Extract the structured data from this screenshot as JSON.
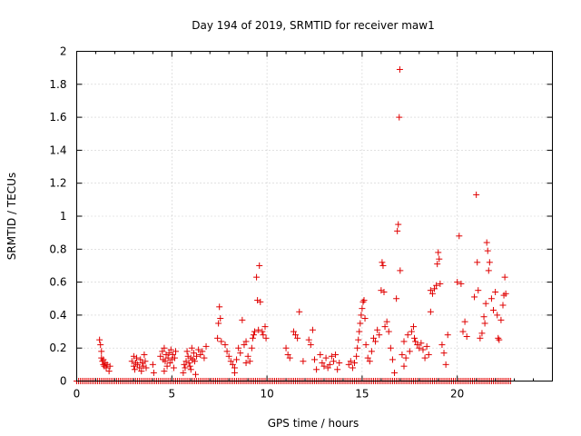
{
  "chart_data": {
    "type": "scatter",
    "title": "Day 194 of 2019, SRMTID for receiver maw1",
    "xlabel": "GPS time / hours",
    "ylabel": "SRMTID / TECUs",
    "xlim": [
      0,
      25
    ],
    "ylim": [
      0,
      2
    ],
    "xticks": [
      0,
      5,
      10,
      15,
      20
    ],
    "xtick_labels": [
      "0",
      "5",
      "10",
      "15",
      "20"
    ],
    "yticks": [
      0,
      0.2,
      0.4,
      0.6,
      0.8,
      1,
      1.2,
      1.4,
      1.6,
      1.8,
      2
    ],
    "ytick_labels": [
      "0",
      "0.2",
      "0.4",
      "0.6",
      "0.8",
      "1",
      "1.2",
      "1.4",
      "1.6",
      "1.8",
      "2"
    ],
    "grid": true,
    "marker": "+",
    "color": "#e00000",
    "series": [
      {
        "name": "SRMTID",
        "points": [
          [
            1.2,
            0.25
          ],
          [
            1.25,
            0.22
          ],
          [
            1.3,
            0.18
          ],
          [
            1.3,
            0.14
          ],
          [
            1.35,
            0.12
          ],
          [
            1.4,
            0.1
          ],
          [
            1.45,
            0.09
          ],
          [
            1.5,
            0.11
          ],
          [
            1.55,
            0.08
          ],
          [
            1.6,
            0.1
          ],
          [
            1.7,
            0.06
          ],
          [
            1.75,
            0.09
          ],
          [
            1.4,
            0.13
          ],
          [
            2.9,
            0.12
          ],
          [
            3.0,
            0.09
          ],
          [
            3.05,
            0.07
          ],
          [
            3.1,
            0.11
          ],
          [
            3.15,
            0.14
          ],
          [
            3.2,
            0.1
          ],
          [
            3.3,
            0.08
          ],
          [
            3.35,
            0.13
          ],
          [
            3.4,
            0.06
          ],
          [
            3.45,
            0.11
          ],
          [
            3.5,
            0.09
          ],
          [
            3.55,
            0.16
          ],
          [
            3.6,
            0.12
          ],
          [
            3.65,
            0.08
          ],
          [
            3.0,
            0.15
          ],
          [
            4.0,
            0.1
          ],
          [
            4.05,
            0.05
          ],
          [
            4.4,
            0.15
          ],
          [
            4.5,
            0.18
          ],
          [
            4.55,
            0.13
          ],
          [
            4.6,
            0.2
          ],
          [
            4.65,
            0.12
          ],
          [
            4.7,
            0.16
          ],
          [
            4.75,
            0.09
          ],
          [
            4.8,
            0.14
          ],
          [
            4.85,
            0.17
          ],
          [
            4.9,
            0.11
          ],
          [
            4.95,
            0.19
          ],
          [
            5.0,
            0.13
          ],
          [
            5.05,
            0.16
          ],
          [
            5.1,
            0.08
          ],
          [
            5.15,
            0.14
          ],
          [
            5.2,
            0.18
          ],
          [
            4.6,
            0.06
          ],
          [
            5.6,
            0.05
          ],
          [
            5.65,
            0.1
          ],
          [
            5.7,
            0.08
          ],
          [
            5.75,
            0.12
          ],
          [
            5.8,
            0.18
          ],
          [
            5.85,
            0.15
          ],
          [
            5.9,
            0.11
          ],
          [
            5.95,
            0.09
          ],
          [
            6.0,
            0.14
          ],
          [
            6.05,
            0.2
          ],
          [
            6.1,
            0.13
          ],
          [
            6.15,
            0.17
          ],
          [
            6.2,
            0.12
          ],
          [
            6.3,
            0.15
          ],
          [
            6.4,
            0.19
          ],
          [
            6.5,
            0.16
          ],
          [
            6.6,
            0.18
          ],
          [
            6.7,
            0.14
          ],
          [
            6.8,
            0.21
          ],
          [
            6.0,
            0.07
          ],
          [
            6.25,
            0.04
          ],
          [
            7.4,
            0.26
          ],
          [
            7.45,
            0.35
          ],
          [
            7.5,
            0.45
          ],
          [
            7.55,
            0.38
          ],
          [
            7.6,
            0.24
          ],
          [
            7.8,
            0.22
          ],
          [
            7.9,
            0.18
          ],
          [
            8.0,
            0.15
          ],
          [
            8.1,
            0.12
          ],
          [
            8.2,
            0.1
          ],
          [
            8.3,
            0.08
          ],
          [
            8.4,
            0.13
          ],
          [
            8.5,
            0.2
          ],
          [
            8.6,
            0.17
          ],
          [
            8.7,
            0.37
          ],
          [
            8.8,
            0.22
          ],
          [
            8.9,
            0.24
          ],
          [
            9.0,
            0.15
          ],
          [
            9.1,
            0.12
          ],
          [
            9.2,
            0.2
          ],
          [
            9.25,
            0.26
          ],
          [
            9.3,
            0.28
          ],
          [
            9.35,
            0.3
          ],
          [
            9.45,
            0.63
          ],
          [
            9.5,
            0.49
          ],
          [
            9.55,
            0.31
          ],
          [
            9.6,
            0.7
          ],
          [
            9.65,
            0.48
          ],
          [
            9.75,
            0.3
          ],
          [
            9.8,
            0.28
          ],
          [
            9.9,
            0.33
          ],
          [
            9.95,
            0.26
          ],
          [
            8.3,
            0.05
          ],
          [
            8.9,
            0.11
          ],
          [
            11.0,
            0.2
          ],
          [
            11.1,
            0.16
          ],
          [
            11.2,
            0.14
          ],
          [
            11.4,
            0.3
          ],
          [
            11.5,
            0.28
          ],
          [
            11.6,
            0.26
          ],
          [
            11.7,
            0.42
          ],
          [
            11.9,
            0.12
          ],
          [
            12.2,
            0.25
          ],
          [
            12.3,
            0.22
          ],
          [
            12.4,
            0.31
          ],
          [
            12.5,
            0.13
          ],
          [
            12.6,
            0.07
          ],
          [
            12.8,
            0.16
          ],
          [
            12.9,
            0.11
          ],
          [
            13.0,
            0.09
          ],
          [
            13.1,
            0.14
          ],
          [
            13.2,
            0.08
          ],
          [
            13.3,
            0.1
          ],
          [
            13.4,
            0.15
          ],
          [
            13.5,
            0.12
          ],
          [
            13.6,
            0.16
          ],
          [
            13.7,
            0.07
          ],
          [
            13.8,
            0.11
          ],
          [
            14.3,
            0.1
          ],
          [
            14.4,
            0.12
          ],
          [
            14.5,
            0.08
          ],
          [
            14.6,
            0.11
          ],
          [
            14.7,
            0.15
          ],
          [
            14.75,
            0.2
          ],
          [
            14.8,
            0.25
          ],
          [
            14.85,
            0.3
          ],
          [
            14.9,
            0.35
          ],
          [
            14.95,
            0.4
          ],
          [
            15.0,
            0.44
          ],
          [
            15.05,
            0.48
          ],
          [
            15.1,
            0.49
          ],
          [
            15.15,
            0.38
          ],
          [
            15.2,
            0.22
          ],
          [
            15.3,
            0.14
          ],
          [
            15.4,
            0.12
          ],
          [
            15.5,
            0.18
          ],
          [
            15.6,
            0.26
          ],
          [
            15.7,
            0.24
          ],
          [
            15.8,
            0.31
          ],
          [
            15.9,
            0.28
          ],
          [
            16.0,
            0.55
          ],
          [
            16.05,
            0.72
          ],
          [
            16.1,
            0.7
          ],
          [
            16.15,
            0.54
          ],
          [
            16.2,
            0.33
          ],
          [
            16.3,
            0.36
          ],
          [
            16.4,
            0.3
          ],
          [
            16.5,
            0.2
          ],
          [
            16.6,
            0.13
          ],
          [
            16.7,
            0.05
          ],
          [
            16.8,
            0.5
          ],
          [
            16.85,
            0.91
          ],
          [
            16.9,
            0.95
          ],
          [
            16.95,
            1.6
          ],
          [
            16.98,
            1.89
          ],
          [
            17.0,
            0.67
          ],
          [
            17.1,
            0.16
          ],
          [
            17.2,
            0.24
          ],
          [
            17.3,
            0.14
          ],
          [
            17.4,
            0.28
          ],
          [
            17.5,
            0.18
          ],
          [
            17.6,
            0.3
          ],
          [
            17.7,
            0.33
          ],
          [
            17.75,
            0.26
          ],
          [
            17.8,
            0.24
          ],
          [
            17.9,
            0.22
          ],
          [
            18.0,
            0.2
          ],
          [
            18.1,
            0.23
          ],
          [
            18.2,
            0.19
          ],
          [
            18.3,
            0.14
          ],
          [
            18.4,
            0.21
          ],
          [
            18.5,
            0.16
          ],
          [
            18.6,
            0.55
          ],
          [
            18.7,
            0.53
          ],
          [
            18.8,
            0.56
          ],
          [
            18.9,
            0.58
          ],
          [
            18.95,
            0.71
          ],
          [
            19.0,
            0.78
          ],
          [
            19.05,
            0.74
          ],
          [
            19.1,
            0.59
          ],
          [
            19.2,
            0.22
          ],
          [
            19.3,
            0.17
          ],
          [
            19.4,
            0.1
          ],
          [
            19.5,
            0.28
          ],
          [
            17.2,
            0.09
          ],
          [
            18.6,
            0.42
          ],
          [
            20.0,
            0.6
          ],
          [
            20.1,
            0.88
          ],
          [
            20.2,
            0.59
          ],
          [
            20.3,
            0.3
          ],
          [
            20.4,
            0.36
          ],
          [
            20.5,
            0.27
          ],
          [
            20.9,
            0.51
          ],
          [
            21.0,
            1.13
          ],
          [
            21.05,
            0.72
          ],
          [
            21.1,
            0.55
          ],
          [
            21.2,
            0.26
          ],
          [
            21.3,
            0.29
          ],
          [
            21.4,
            0.39
          ],
          [
            21.45,
            0.35
          ],
          [
            21.5,
            0.47
          ],
          [
            21.55,
            0.84
          ],
          [
            21.6,
            0.79
          ],
          [
            21.65,
            0.67
          ],
          [
            21.7,
            0.72
          ],
          [
            21.8,
            0.5
          ],
          [
            21.9,
            0.43
          ],
          [
            22.0,
            0.54
          ],
          [
            22.1,
            0.4
          ],
          [
            22.15,
            0.26
          ],
          [
            22.2,
            0.25
          ],
          [
            22.3,
            0.37
          ],
          [
            22.4,
            0.46
          ],
          [
            22.45,
            0.52
          ],
          [
            22.5,
            0.63
          ],
          [
            22.55,
            0.53
          ]
        ]
      }
    ],
    "zero_baseline": {
      "x_start": 0,
      "x_end": 22.8,
      "step": 0.1,
      "y": 0
    }
  }
}
